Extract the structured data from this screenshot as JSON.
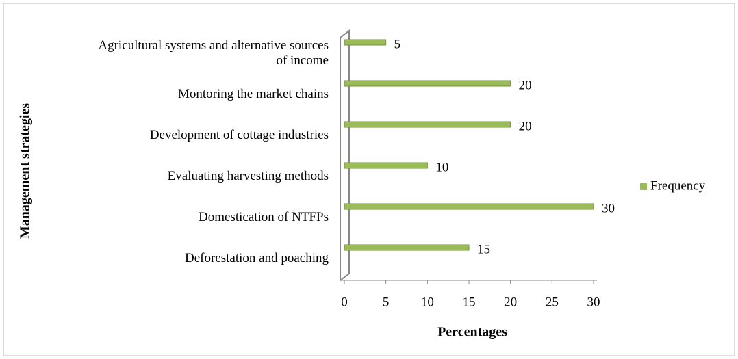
{
  "chart_data": {
    "type": "bar",
    "orientation": "horizontal",
    "categories": [
      "Agricultural systems and alternative sources of income",
      "Montoring the market chains",
      "Development of cottage industries",
      "Evaluating  harvesting methods",
      "Domestication of NTFPs",
      "Deforestation and poaching"
    ],
    "series": [
      {
        "name": "Frequency",
        "color": "#9bbb59",
        "values": [
          5,
          20,
          20,
          10,
          30,
          15
        ]
      }
    ],
    "xlim": [
      0,
      30
    ],
    "xticks": [
      0,
      5,
      10,
      15,
      20,
      25,
      30
    ],
    "xlabel": "Percentages",
    "ylabel": "Management strategies",
    "legend": "right"
  }
}
